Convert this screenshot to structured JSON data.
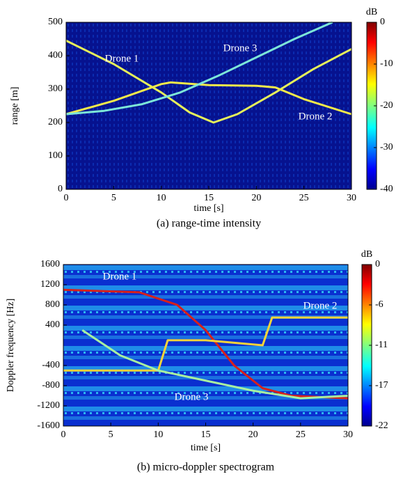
{
  "chart_data": [
    {
      "type": "heatmap",
      "caption": "(a) range-time intensity",
      "xlabel": "time [s]",
      "ylabel": "range [m]",
      "colorbar_label": "dB",
      "xlim": [
        0,
        30
      ],
      "xticks": [
        0,
        5,
        10,
        15,
        20,
        25,
        30
      ],
      "ylim": [
        0,
        500
      ],
      "yticks": [
        0,
        100,
        200,
        300,
        400,
        500
      ],
      "clim": [
        -40,
        0
      ],
      "cticks": [
        0,
        -10,
        -20,
        -30,
        -40
      ],
      "annotations": [
        "Drone 1",
        "Drone 3",
        "Drone 2"
      ],
      "series": [
        {
          "name": "Drone 1",
          "color": "#e6f05a",
          "x": [
            0,
            5,
            10,
            13,
            15.5,
            18,
            22,
            26,
            30
          ],
          "values": [
            445,
            375,
            290,
            230,
            200,
            225,
            290,
            360,
            420
          ]
        },
        {
          "name": "Drone 2",
          "color": "#f2e94a",
          "x": [
            0,
            5,
            10,
            11,
            15,
            20,
            22,
            25,
            30
          ],
          "values": [
            225,
            265,
            315,
            320,
            312,
            310,
            305,
            270,
            225
          ]
        },
        {
          "name": "Drone 3",
          "color": "#7de6d8",
          "x": [
            0,
            4,
            8,
            12,
            16,
            20,
            24,
            28
          ],
          "values": [
            225,
            235,
            255,
            290,
            340,
            395,
            450,
            500
          ]
        }
      ]
    },
    {
      "type": "heatmap",
      "caption": "(b) micro-doppler spectrogram",
      "xlabel": "time [s]",
      "ylabel": "Doppler frequency [Hz]",
      "colorbar_label": "dB",
      "xlim": [
        0,
        30
      ],
      "xticks": [
        0,
        5,
        10,
        15,
        20,
        25,
        30
      ],
      "ylim": [
        -1600,
        1600
      ],
      "yticks": [
        1600,
        1200,
        800,
        400,
        -400,
        -800,
        -1200,
        -1600
      ],
      "clim": [
        -22,
        0
      ],
      "cticks": [
        0,
        {
          "value": -5.5,
          "label": "-6"
        },
        -11,
        {
          "value": -16.5,
          "label": "-17"
        },
        -22
      ],
      "annotations": [
        "Drone 1",
        "Drone 2",
        "Drone 3"
      ],
      "series": [
        {
          "name": "Drone 1",
          "color": "#d8201a",
          "x": [
            0,
            8,
            12,
            15,
            18,
            21,
            24,
            30
          ],
          "values": [
            1100,
            1050,
            800,
            300,
            -400,
            -850,
            -1000,
            -1050
          ]
        },
        {
          "name": "Drone 2",
          "color": "#f5d33a",
          "x": [
            0,
            10,
            11,
            15,
            21,
            22,
            30
          ],
          "values": [
            -500,
            -500,
            100,
            100,
            0,
            550,
            550
          ]
        },
        {
          "name": "Drone 3",
          "color": "#a8f0a0",
          "x": [
            2,
            6,
            10,
            15,
            20,
            25,
            30
          ],
          "values": [
            300,
            -200,
            -500,
            -700,
            -900,
            -1050,
            -1000
          ]
        }
      ]
    }
  ]
}
